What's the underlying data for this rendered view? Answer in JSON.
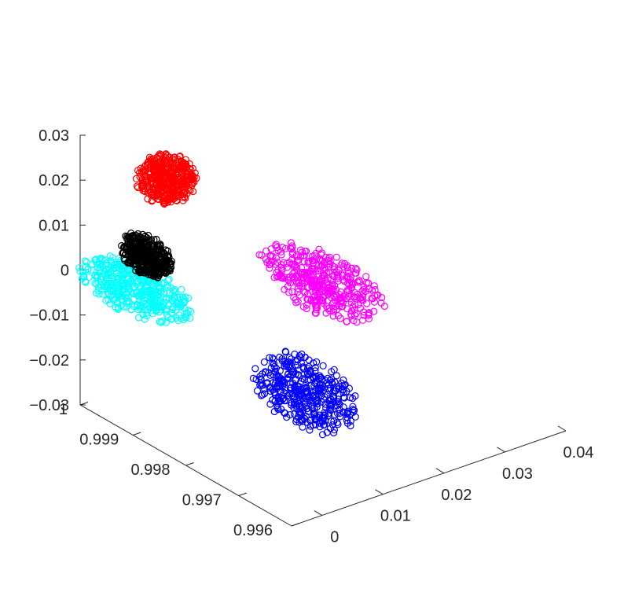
{
  "chart_data": {
    "type": "scatter",
    "projection": "3d",
    "title": "",
    "xlabel": "",
    "ylabel": "",
    "zlabel": "",
    "xlim": [
      -0.005,
      0.04
    ],
    "ylim": [
      0.9955,
      1.0
    ],
    "zlim": [
      -0.03,
      0.03
    ],
    "grid": false,
    "x_ticks": [
      "0",
      "0.01",
      "0.02",
      "0.03",
      "0.04"
    ],
    "y_ticks": [
      "0.996",
      "0.997",
      "0.998",
      "0.999",
      "1"
    ],
    "z_ticks": [
      "−0.03",
      "−0.02",
      "−0.01",
      "0",
      "0.01",
      "0.02",
      "0.03"
    ],
    "clusters": [
      {
        "color": "#00ffff",
        "center": [
          -0.0035,
          0.999,
          0.001
        ],
        "spread": [
          0.0045,
          0.0011,
          0.004
        ]
      },
      {
        "color": "#000000",
        "center": [
          0.002,
          0.9995,
          0.003
        ],
        "spread": [
          0.0022,
          0.0005,
          0.004
        ]
      },
      {
        "color": "#ff0000",
        "center": [
          0.008,
          0.99985,
          0.015
        ],
        "spread": [
          0.004,
          0.0004,
          0.005
        ]
      },
      {
        "color": "#0000ff",
        "center": [
          0.009,
          0.997,
          -0.016
        ],
        "spread": [
          0.0045,
          0.001,
          0.007
        ]
      },
      {
        "color": "#ff00ff",
        "center": [
          0.023,
          0.9985,
          -0.007
        ],
        "spread": [
          0.005,
          0.0012,
          0.005
        ]
      }
    ]
  }
}
